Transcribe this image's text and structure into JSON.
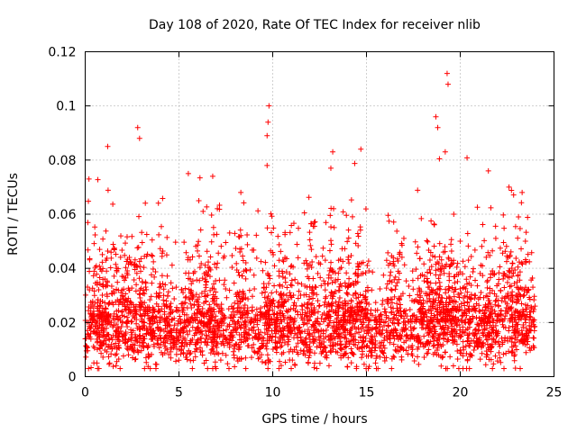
{
  "chart_data": {
    "type": "scatter",
    "title": "Day 108 of 2020, Rate Of TEC Index for receiver nlib",
    "xlabel": "GPS time / hours",
    "ylabel": "ROTI / TECUs",
    "xlim": [
      0,
      25
    ],
    "ylim": [
      0,
      0.12
    ],
    "xticks": [
      0,
      5,
      10,
      15,
      20,
      25
    ],
    "xtick_labels": [
      "0",
      "5",
      "10",
      "15",
      "20",
      "25"
    ],
    "yticks": [
      0,
      0.02,
      0.04,
      0.06,
      0.08,
      0.1,
      0.12
    ],
    "ytick_labels": [
      "0",
      "0.02",
      "0.04",
      "0.06",
      "0.08",
      "0.1",
      "0.12"
    ],
    "grid": true,
    "marker": "plus",
    "series_color": "#ff0000",
    "data_extent_hours": [
      0,
      24
    ],
    "baseline_band": [
      0.008,
      0.025
    ],
    "notable_points": [
      {
        "x": 0.2,
        "y": 0.073
      },
      {
        "x": 1.2,
        "y": 0.085
      },
      {
        "x": 2.8,
        "y": 0.092
      },
      {
        "x": 2.9,
        "y": 0.088
      },
      {
        "x": 5.5,
        "y": 0.075
      },
      {
        "x": 6.8,
        "y": 0.074
      },
      {
        "x": 8.3,
        "y": 0.068
      },
      {
        "x": 9.8,
        "y": 0.1
      },
      {
        "x": 9.75,
        "y": 0.094
      },
      {
        "x": 9.7,
        "y": 0.089
      },
      {
        "x": 9.7,
        "y": 0.078
      },
      {
        "x": 13.2,
        "y": 0.083
      },
      {
        "x": 13.1,
        "y": 0.077
      },
      {
        "x": 14.7,
        "y": 0.084
      },
      {
        "x": 18.7,
        "y": 0.096
      },
      {
        "x": 18.8,
        "y": 0.092
      },
      {
        "x": 19.3,
        "y": 0.112
      },
      {
        "x": 19.35,
        "y": 0.108
      },
      {
        "x": 19.2,
        "y": 0.083
      },
      {
        "x": 21.5,
        "y": 0.076
      },
      {
        "x": 22.6,
        "y": 0.07
      },
      {
        "x": 23.3,
        "y": 0.068
      }
    ]
  }
}
